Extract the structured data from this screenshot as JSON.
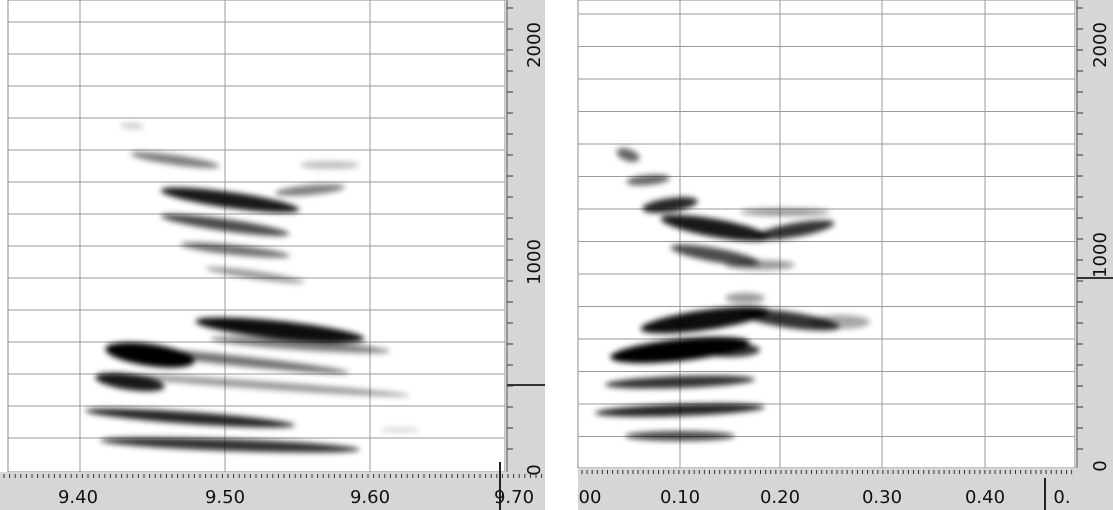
{
  "panels": [
    {
      "x_tick_labels": [
        "9.40",
        "9.50",
        "9.60",
        "9.70"
      ],
      "y_tick_labels": [
        "2000",
        "1000",
        "0"
      ]
    },
    {
      "x_tick_labels": [
        "00",
        "0.10",
        "0.20",
        "0.30",
        "0.40",
        "0."
      ],
      "y_tick_labels": [
        "2000",
        "1000",
        "0"
      ]
    }
  ]
}
